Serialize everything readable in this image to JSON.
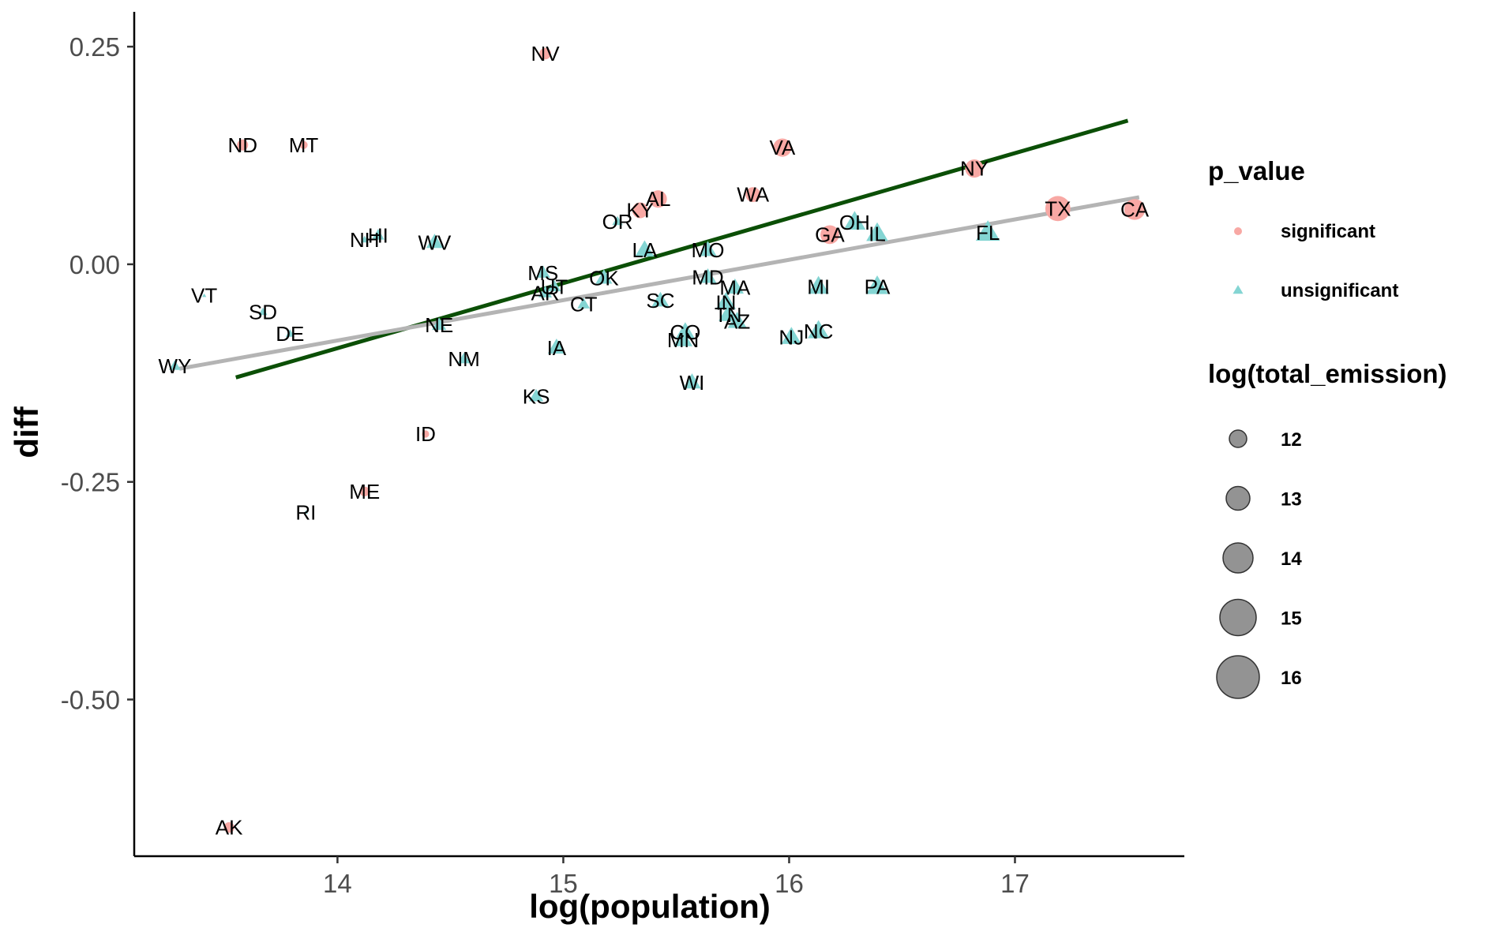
{
  "chart_data": {
    "type": "scatter",
    "title": "",
    "xlabel": "log(population)",
    "ylabel": "diff",
    "xlim": [
      13.1,
      17.75
    ],
    "ylim": [
      -0.68,
      0.29
    ],
    "x_ticks": [
      14,
      15,
      16,
      17
    ],
    "x_tick_labels": [
      "14",
      "15",
      "16",
      "17"
    ],
    "y_ticks": [
      0.25,
      0.0,
      -0.25,
      -0.5
    ],
    "y_tick_labels": [
      "0.25",
      "0.00",
      "-0.25",
      "-0.50"
    ],
    "grid": false,
    "colors": {
      "significant": "#F8A8A4",
      "unsignificant": "#84D5D3",
      "fit_line_green": "#0b4f06",
      "fit_line_gray": "#b4b4b4",
      "size_legend": "#808080"
    },
    "legend": {
      "placement": "right",
      "color_title": "p_value",
      "color_entries": [
        {
          "label": "significant",
          "shape": "circle"
        },
        {
          "label": "unsignificant",
          "shape": "triangle"
        }
      ],
      "size_title": "log(total_emission)",
      "size_entries": [
        {
          "label": "12",
          "value": 12
        },
        {
          "label": "13",
          "value": 13
        },
        {
          "label": "14",
          "value": 14
        },
        {
          "label": "15",
          "value": 15
        },
        {
          "label": "16",
          "value": 16
        }
      ]
    },
    "lines": [
      {
        "color": "green",
        "x": [
          13.55,
          17.5
        ],
        "y": [
          -0.13,
          0.165
        ]
      },
      {
        "color": "gray",
        "x": [
          13.3,
          17.55
        ],
        "y": [
          -0.12,
          0.077
        ]
      }
    ],
    "points": [
      {
        "label": "NV",
        "x": 14.92,
        "y": 0.242,
        "p": "significant",
        "size": 12.6
      },
      {
        "label": "ND",
        "x": 13.58,
        "y": 0.137,
        "p": "significant",
        "size": 12.5
      },
      {
        "label": "MT",
        "x": 13.85,
        "y": 0.137,
        "p": "significant",
        "size": 11.8
      },
      {
        "label": "VA",
        "x": 15.97,
        "y": 0.134,
        "p": "significant",
        "size": 14.2
      },
      {
        "label": "NY",
        "x": 16.82,
        "y": 0.11,
        "p": "significant",
        "size": 14.2
      },
      {
        "label": "WA",
        "x": 15.84,
        "y": 0.08,
        "p": "significant",
        "size": 13.4
      },
      {
        "label": "AL",
        "x": 15.42,
        "y": 0.075,
        "p": "significant",
        "size": 14.0
      },
      {
        "label": "KY",
        "x": 15.34,
        "y": 0.062,
        "p": "significant",
        "size": 13.6
      },
      {
        "label": "TX",
        "x": 17.19,
        "y": 0.064,
        "p": "significant",
        "size": 15.8
      },
      {
        "label": "CA",
        "x": 17.53,
        "y": 0.063,
        "p": "significant",
        "size": 14.8
      },
      {
        "label": "GA",
        "x": 16.18,
        "y": 0.034,
        "p": "significant",
        "size": 14.3
      },
      {
        "label": "OR",
        "x": 15.24,
        "y": 0.049,
        "p": "unsignificant",
        "size": 12.2
      },
      {
        "label": "OH",
        "x": 16.29,
        "y": 0.048,
        "p": "unsignificant",
        "size": 14.6
      },
      {
        "label": "IL",
        "x": 16.39,
        "y": 0.035,
        "p": "unsignificant",
        "size": 14.6
      },
      {
        "label": "FL",
        "x": 16.88,
        "y": 0.036,
        "p": "unsignificant",
        "size": 15.1
      },
      {
        "label": "HI",
        "x": 14.18,
        "y": 0.033,
        "p": "unsignificant",
        "size": 12.6
      },
      {
        "label": "NH",
        "x": 14.12,
        "y": 0.028,
        "p": "unsignificant",
        "size": 11.6
      },
      {
        "label": "WV",
        "x": 14.43,
        "y": 0.025,
        "p": "unsignificant",
        "size": 13.5
      },
      {
        "label": "LA",
        "x": 15.36,
        "y": 0.016,
        "p": "unsignificant",
        "size": 14.0
      },
      {
        "label": "MO",
        "x": 15.64,
        "y": 0.016,
        "p": "unsignificant",
        "size": 13.7
      },
      {
        "label": "MS",
        "x": 14.91,
        "y": -0.01,
        "p": "unsignificant",
        "size": 13.0
      },
      {
        "label": "OK",
        "x": 15.18,
        "y": -0.016,
        "p": "unsignificant",
        "size": 13.5
      },
      {
        "label": "MD",
        "x": 15.64,
        "y": -0.015,
        "p": "unsignificant",
        "size": 13.6
      },
      {
        "label": "AR",
        "x": 14.92,
        "y": -0.033,
        "p": "unsignificant",
        "size": 12.8
      },
      {
        "label": "UT",
        "x": 14.96,
        "y": -0.026,
        "p": "unsignificant",
        "size": 12.8
      },
      {
        "label": "MA",
        "x": 15.76,
        "y": -0.027,
        "p": "unsignificant",
        "size": 13.7
      },
      {
        "label": "MI",
        "x": 16.13,
        "y": -0.026,
        "p": "unsignificant",
        "size": 14.4
      },
      {
        "label": "PA",
        "x": 16.39,
        "y": -0.026,
        "p": "unsignificant",
        "size": 14.6
      },
      {
        "label": "CT",
        "x": 15.09,
        "y": -0.046,
        "p": "unsignificant",
        "size": 12.6
      },
      {
        "label": "SC",
        "x": 15.43,
        "y": -0.042,
        "p": "unsignificant",
        "size": 13.6
      },
      {
        "label": "IN",
        "x": 15.72,
        "y": -0.044,
        "p": "unsignificant",
        "size": 14.2
      },
      {
        "label": "TN",
        "x": 15.73,
        "y": -0.058,
        "p": "unsignificant",
        "size": 14.0
      },
      {
        "label": "AZ",
        "x": 15.77,
        "y": -0.066,
        "p": "unsignificant",
        "size": 14.0
      },
      {
        "label": "SD",
        "x": 13.67,
        "y": -0.055,
        "p": "unsignificant",
        "size": 11.8
      },
      {
        "label": "NE",
        "x": 14.45,
        "y": -0.07,
        "p": "unsignificant",
        "size": 13.0
      },
      {
        "label": "DE",
        "x": 13.79,
        "y": -0.08,
        "p": "unsignificant",
        "size": 11.8
      },
      {
        "label": "NC",
        "x": 16.13,
        "y": -0.077,
        "p": "unsignificant",
        "size": 14.5
      },
      {
        "label": "NJ",
        "x": 16.01,
        "y": -0.084,
        "p": "unsignificant",
        "size": 14.2
      },
      {
        "label": "CO",
        "x": 15.54,
        "y": -0.078,
        "p": "unsignificant",
        "size": 14.0
      },
      {
        "label": "MN",
        "x": 15.53,
        "y": -0.087,
        "p": "unsignificant",
        "size": 14.0
      },
      {
        "label": "IA",
        "x": 14.97,
        "y": -0.096,
        "p": "unsignificant",
        "size": 13.7
      },
      {
        "label": "NM",
        "x": 14.56,
        "y": -0.109,
        "p": "unsignificant",
        "size": 12.6
      },
      {
        "label": "WY",
        "x": 13.28,
        "y": -0.117,
        "p": "unsignificant",
        "size": 12.4
      },
      {
        "label": "WI",
        "x": 15.57,
        "y": -0.136,
        "p": "unsignificant",
        "size": 13.7
      },
      {
        "label": "KS",
        "x": 14.88,
        "y": -0.152,
        "p": "unsignificant",
        "size": 13.0
      },
      {
        "label": "VT",
        "x": 13.41,
        "y": -0.036,
        "p": "unsignificant",
        "size": 10.8
      },
      {
        "label": "ID",
        "x": 14.39,
        "y": -0.195,
        "p": "significant",
        "size": 11.6
      },
      {
        "label": "ME",
        "x": 14.12,
        "y": -0.261,
        "p": "significant",
        "size": 12.2
      },
      {
        "label": "RI",
        "x": 13.86,
        "y": -0.285,
        "p": "unsignificant",
        "size": 10.8
      },
      {
        "label": "AK",
        "x": 13.52,
        "y": -0.647,
        "p": "significant",
        "size": 12.4
      }
    ]
  }
}
